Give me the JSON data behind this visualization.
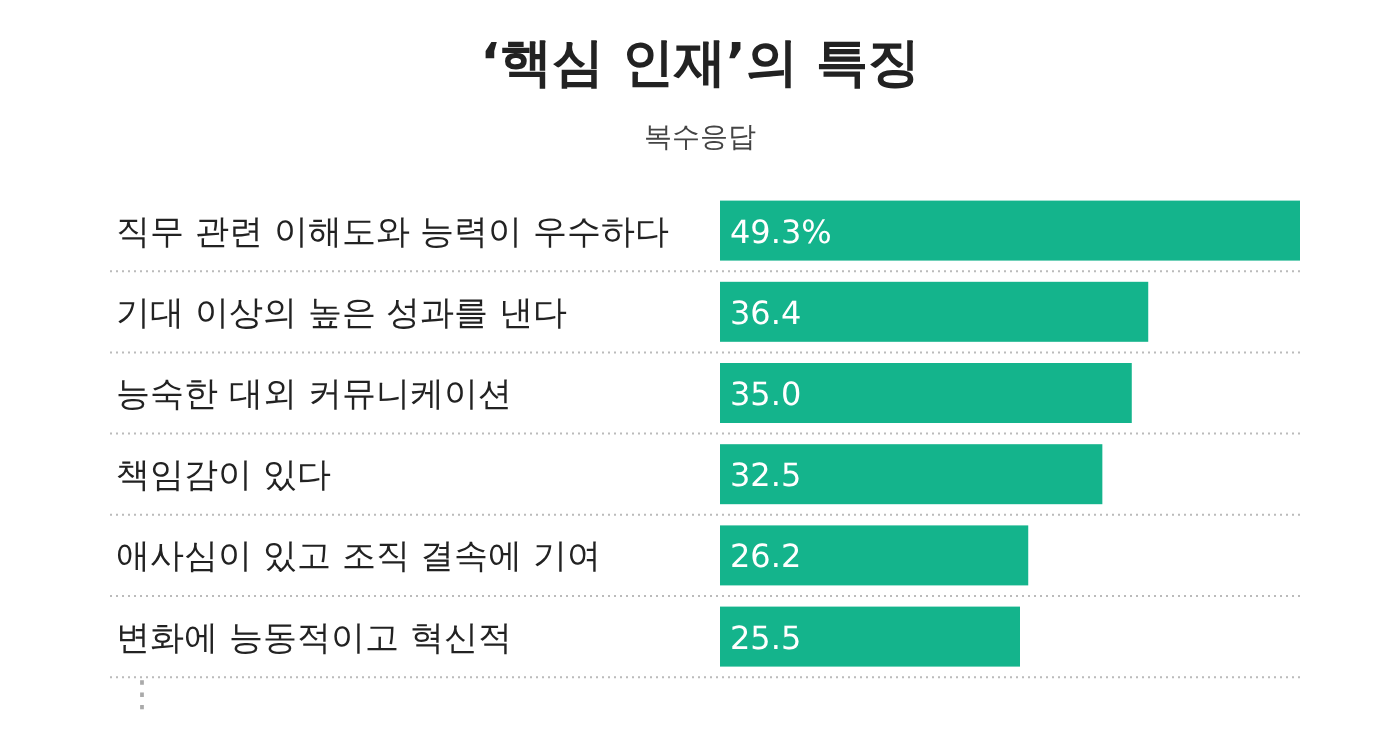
{
  "chart_data": {
    "type": "bar",
    "orientation": "horizontal",
    "title": "‘핵심 인재’의 특징",
    "subtitle": "복수응답",
    "categories": [
      "직무 관련 이해도와 능력이 우수하다",
      "기대 이상의 높은 성과를 낸다",
      "능숙한 대외 커뮤니케이션",
      "책임감이 있다",
      "애사심이 있고 조직 결속에 기여",
      "변화에 능동적이고 혁신적"
    ],
    "values": [
      49.3,
      36.4,
      35.0,
      32.5,
      26.2,
      25.5
    ],
    "value_labels": [
      "49.3%",
      "36.4",
      "35.0",
      "32.5",
      "26.2",
      "25.5"
    ],
    "color": "#14b48c",
    "grid": true,
    "annotations": [
      "⋮"
    ]
  }
}
